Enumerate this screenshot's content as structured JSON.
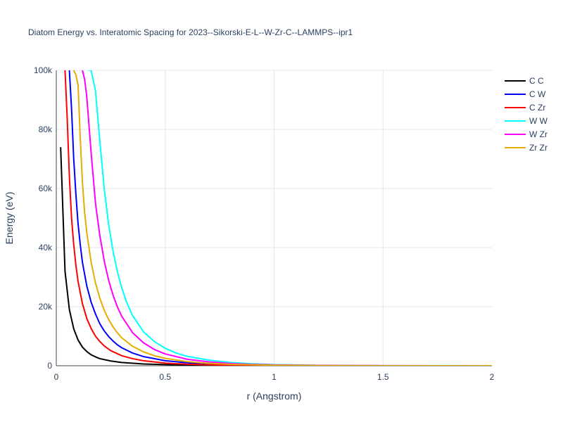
{
  "chart_data": {
    "type": "line",
    "title": "Diatom Energy vs. Interatomic Spacing for 2023--Sikorski-E-L--W-Zr-C--LAMMPS--ipr1",
    "xlabel": "r (Angstrom)",
    "ylabel": "Energy (eV)",
    "xlim": [
      0,
      2
    ],
    "ylim": [
      0,
      100000
    ],
    "x_ticks": [
      0,
      0.5,
      1,
      1.5,
      2
    ],
    "x_tick_labels": [
      "0",
      "0.5",
      "1",
      "1.5",
      "2"
    ],
    "y_ticks": [
      0,
      20000,
      40000,
      60000,
      80000,
      100000
    ],
    "y_tick_labels": [
      "0",
      "20k",
      "40k",
      "60k",
      "80k",
      "100k"
    ],
    "grid": true,
    "legend_position": "top-right",
    "series": [
      {
        "name": "C C",
        "color": "#000000",
        "x": [
          0.02,
          0.04,
          0.06,
          0.08,
          0.1,
          0.12,
          0.14,
          0.16,
          0.18,
          0.2,
          0.25,
          0.3,
          0.4,
          0.5,
          0.6,
          0.8,
          1.0,
          1.5,
          2.0
        ],
        "y": [
          74000,
          32000,
          19000,
          12500,
          8700,
          6300,
          4800,
          3700,
          3000,
          2400,
          1600,
          1100,
          600,
          380,
          250,
          110,
          50,
          5,
          0
        ]
      },
      {
        "name": "C W",
        "color": "#0000ff",
        "x": [
          0.06,
          0.07,
          0.08,
          0.09,
          0.1,
          0.11,
          0.12,
          0.14,
          0.16,
          0.18,
          0.2,
          0.22,
          0.24,
          0.26,
          0.28,
          0.3,
          0.35,
          0.4,
          0.5,
          0.6,
          0.7,
          0.8,
          1.0,
          1.2,
          1.5,
          2.0
        ],
        "y": [
          100000,
          87000,
          70000,
          58000,
          48000,
          41000,
          35000,
          27000,
          21500,
          17500,
          14200,
          11800,
          9900,
          8400,
          7100,
          6100,
          4300,
          3100,
          1700,
          1000,
          600,
          380,
          150,
          60,
          15,
          0
        ]
      },
      {
        "name": "C Zr",
        "color": "#ff0000",
        "x": [
          0.04,
          0.05,
          0.06,
          0.07,
          0.08,
          0.09,
          0.1,
          0.12,
          0.14,
          0.16,
          0.18,
          0.2,
          0.22,
          0.25,
          0.3,
          0.35,
          0.4,
          0.5,
          0.6,
          0.7,
          0.8,
          1.0,
          1.2,
          1.5,
          2.0
        ],
        "y": [
          100000,
          84000,
          64000,
          50000,
          41000,
          34000,
          28500,
          21000,
          16000,
          12600,
          10000,
          8200,
          6700,
          5100,
          3400,
          2400,
          1700,
          900,
          500,
          300,
          180,
          70,
          30,
          8,
          0
        ]
      },
      {
        "name": "W W",
        "color": "#00ffff",
        "x": [
          0.15,
          0.16,
          0.18,
          0.2,
          0.22,
          0.24,
          0.26,
          0.28,
          0.3,
          0.32,
          0.35,
          0.4,
          0.45,
          0.5,
          0.55,
          0.6,
          0.7,
          0.8,
          0.9,
          1.0,
          1.2,
          1.5,
          2.0
        ],
        "y": [
          100000,
          100000,
          93000,
          76000,
          60000,
          48000,
          39000,
          32000,
          26500,
          22000,
          17000,
          11500,
          8200,
          5900,
          4300,
          3200,
          1900,
          1100,
          650,
          400,
          150,
          40,
          5
        ]
      },
      {
        "name": "W Zr",
        "color": "#ff00ff",
        "x": [
          0.12,
          0.13,
          0.14,
          0.16,
          0.18,
          0.2,
          0.22,
          0.24,
          0.26,
          0.28,
          0.3,
          0.35,
          0.4,
          0.45,
          0.5,
          0.6,
          0.7,
          0.8,
          0.9,
          1.0,
          1.2,
          1.5,
          2.0
        ],
        "y": [
          100000,
          97000,
          91000,
          72000,
          55000,
          44000,
          35500,
          29000,
          24000,
          20000,
          16800,
          11200,
          7800,
          5500,
          4000,
          2200,
          1300,
          750,
          450,
          280,
          110,
          30,
          3
        ]
      },
      {
        "name": "Zr Zr",
        "color": "#e6ac00",
        "x": [
          0.08,
          0.09,
          0.1,
          0.11,
          0.12,
          0.13,
          0.14,
          0.16,
          0.18,
          0.2,
          0.22,
          0.24,
          0.26,
          0.28,
          0.3,
          0.35,
          0.4,
          0.45,
          0.5,
          0.6,
          0.7,
          0.8,
          1.0,
          1.2,
          1.5,
          2.0
        ],
        "y": [
          100000,
          98500,
          95000,
          77000,
          62000,
          52000,
          45000,
          35000,
          28000,
          22800,
          18800,
          15700,
          13200,
          11200,
          9500,
          6600,
          4700,
          3400,
          2500,
          1400,
          800,
          480,
          180,
          70,
          15,
          0
        ]
      }
    ]
  }
}
